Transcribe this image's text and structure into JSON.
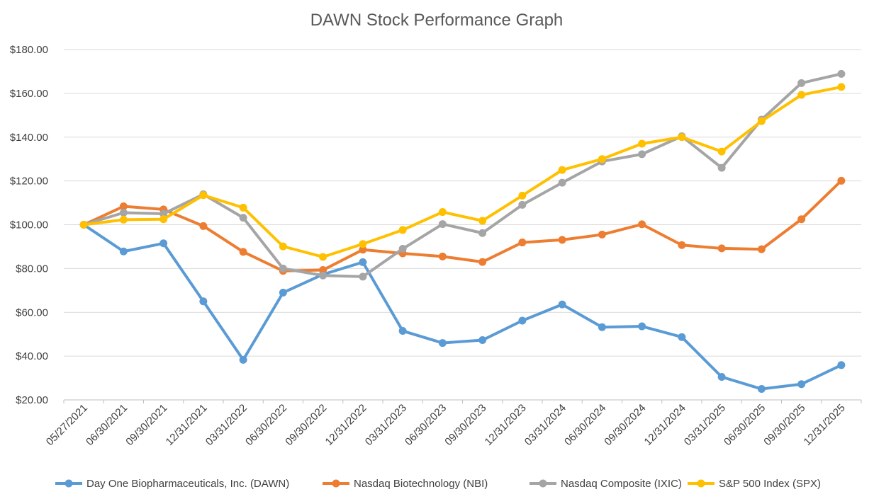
{
  "chart_data": {
    "type": "line",
    "title": "DAWN Stock Performance Graph",
    "xlabel": "",
    "ylabel": "",
    "ylim": [
      20,
      180
    ],
    "yticks": [
      "$20.00",
      "$40.00",
      "$60.00",
      "$80.00",
      "$100.00",
      "$120.00",
      "$140.00",
      "$160.00",
      "$180.00"
    ],
    "ytick_values": [
      20,
      40,
      60,
      80,
      100,
      120,
      140,
      160,
      180
    ],
    "grid": true,
    "legend_position": "bottom",
    "categories": [
      "05/27/2021",
      "06/30/2021",
      "09/30/2021",
      "12/31/2021",
      "03/31/2022",
      "06/30/2022",
      "09/30/2022",
      "12/31/2022",
      "03/31/2023",
      "06/30/2023",
      "09/30/2023",
      "12/31/2023",
      "03/31/2024",
      "06/30/2024",
      "09/30/2024",
      "12/31/2024",
      "03/31/2025",
      "06/30/2025",
      "09/30/2025",
      "12/31/2025"
    ],
    "series": [
      {
        "name": "Day One Biopharmaceuticals, Inc. (DAWN)",
        "color": "#5b9bd5",
        "values": [
          100.0,
          87.8,
          91.5,
          65.0,
          38.3,
          69.0,
          77.3,
          82.9,
          51.5,
          46.0,
          47.3,
          56.2,
          63.6,
          53.2,
          53.6,
          48.7,
          30.5,
          25.0,
          27.2,
          35.9
        ]
      },
      {
        "name": "Nasdaq Biotechnology (NBI)",
        "color": "#ed7d31",
        "values": [
          100.0,
          108.4,
          107.0,
          99.4,
          87.6,
          78.9,
          79.3,
          88.6,
          86.9,
          85.5,
          83.0,
          91.9,
          93.1,
          95.5,
          100.2,
          90.7,
          89.2,
          88.8,
          102.5,
          120.1
        ]
      },
      {
        "name": "Nasdaq Composite (IXIC)",
        "color": "#a5a5a5",
        "values": [
          100.0,
          105.5,
          105.0,
          113.9,
          103.2,
          80.0,
          76.8,
          76.3,
          89.0,
          100.3,
          96.2,
          109.1,
          119.2,
          128.9,
          132.2,
          140.4,
          126.0,
          148.0,
          164.7,
          168.9
        ]
      },
      {
        "name": "S&P 500 Index (SPX)",
        "color": "#ffc000",
        "values": [
          100.0,
          102.3,
          102.5,
          113.5,
          107.8,
          90.1,
          85.3,
          91.2,
          97.6,
          105.8,
          101.8,
          113.3,
          125.0,
          130.0,
          137.0,
          140.0,
          133.4,
          147.3,
          159.3,
          162.9
        ]
      }
    ]
  }
}
